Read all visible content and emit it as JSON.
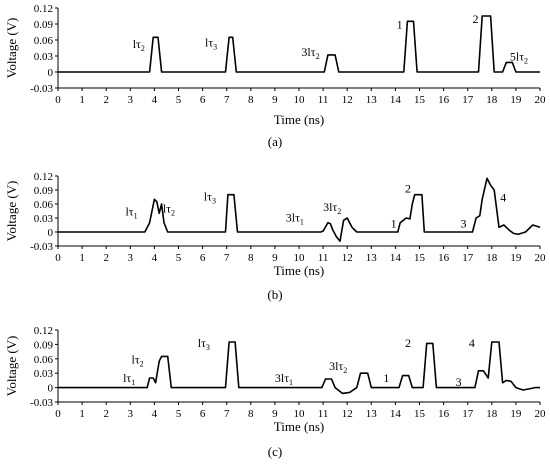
{
  "chart_data": [
    {
      "type": "line",
      "caption": "(a)",
      "xlabel": "Time (ns)",
      "ylabel": "Voltage (V)",
      "xlim": [
        0,
        20
      ],
      "ylim": [
        -0.03,
        0.12
      ],
      "xticks": [
        "0",
        "1",
        "2",
        "3",
        "4",
        "5",
        "6",
        "7",
        "8",
        "9",
        "10",
        "11",
        "12",
        "13",
        "14",
        "15",
        "16",
        "17",
        "18",
        "19",
        "20"
      ],
      "yticks": [
        "-0.03",
        "0",
        "0.03",
        "0.06",
        "0.09",
        "0.12"
      ],
      "grid": false,
      "series": [
        {
          "x": [
            0,
            3.8,
            3.95,
            4.15,
            4.3,
            6.95,
            7.1,
            7.25,
            7.4,
            11.05,
            11.2,
            11.5,
            11.65,
            14.35,
            14.5,
            14.75,
            14.9,
            17.45,
            17.6,
            17.95,
            18.1,
            18.45,
            18.6,
            18.85,
            19.0,
            20
          ],
          "y": [
            0,
            0,
            0.065,
            0.065,
            0,
            0,
            0.065,
            0.065,
            0,
            0,
            0.032,
            0.032,
            0,
            0,
            0.095,
            0.095,
            0,
            0,
            0.105,
            0.105,
            0,
            0,
            0.018,
            0.018,
            0,
            0
          ]
        }
      ],
      "annotations": [
        {
          "pre": "lτ",
          "sub": "2",
          "x": 3.1,
          "y": 0.045
        },
        {
          "pre": "lτ",
          "sub": "3",
          "x": 6.1,
          "y": 0.048
        },
        {
          "pre": "3lτ",
          "sub": "2",
          "x": 10.1,
          "y": 0.03
        },
        {
          "pre": "1",
          "sub": "",
          "x": 14.05,
          "y": 0.082
        },
        {
          "pre": "2",
          "sub": "",
          "x": 17.2,
          "y": 0.092
        },
        {
          "pre": "5lτ",
          "sub": "2",
          "x": 18.75,
          "y": 0.022
        }
      ]
    },
    {
      "type": "line",
      "caption": "(b)",
      "xlabel": "Time (ns)",
      "ylabel": "Voltage (V)",
      "xlim": [
        0,
        20
      ],
      "ylim": [
        -0.03,
        0.12
      ],
      "xticks": [
        "0",
        "1",
        "2",
        "3",
        "4",
        "5",
        "6",
        "7",
        "8",
        "9",
        "10",
        "11",
        "12",
        "13",
        "14",
        "15",
        "16",
        "17",
        "18",
        "19",
        "20"
      ],
      "yticks": [
        "-0.03",
        "0",
        "0.03",
        "0.06",
        "0.09",
        "0.12"
      ],
      "grid": false,
      "series": [
        {
          "x": [
            0,
            3.6,
            3.8,
            3.9,
            4.0,
            4.1,
            4.2,
            4.3,
            4.4,
            4.55,
            6.95,
            7.05,
            7.3,
            7.45,
            10.9,
            11.0,
            11.2,
            11.3,
            11.4,
            11.55,
            11.7,
            11.85,
            12.0,
            12.2,
            12.4,
            14.1,
            14.2,
            14.45,
            14.6,
            14.7,
            14.8,
            15.1,
            15.2,
            17.2,
            17.35,
            17.5,
            17.6,
            17.8,
            17.95,
            18.1,
            18.2,
            18.3,
            18.5,
            18.7,
            18.9,
            19.1,
            19.4,
            19.7,
            20
          ],
          "y": [
            0,
            0,
            0.02,
            0.045,
            0.07,
            0.065,
            0.04,
            0.06,
            0.02,
            0,
            0,
            0.08,
            0.08,
            0,
            0,
            0.002,
            0.02,
            0.018,
            0.005,
            -0.01,
            -0.02,
            0.025,
            0.03,
            0.01,
            0,
            0,
            0.02,
            0.03,
            0.028,
            0.06,
            0.08,
            0.08,
            0,
            0,
            0.03,
            0.035,
            0.07,
            0.115,
            0.1,
            0.09,
            0.05,
            0.01,
            0.015,
            0.005,
            -0.003,
            -0.005,
            0,
            0.015,
            0.01
          ]
        }
      ],
      "annotations": [
        {
          "pre": "lτ",
          "sub": "1",
          "x": 2.8,
          "y": 0.035
        },
        {
          "pre": "lτ",
          "sub": "2",
          "x": 4.35,
          "y": 0.042
        },
        {
          "pre": "lτ",
          "sub": "3",
          "x": 6.05,
          "y": 0.067
        },
        {
          "pre": "3lτ",
          "sub": "1",
          "x": 9.45,
          "y": 0.023
        },
        {
          "pre": "3lτ",
          "sub": "2",
          "x": 11.0,
          "y": 0.045
        },
        {
          "pre": "1",
          "sub": "",
          "x": 13.8,
          "y": 0.01
        },
        {
          "pre": "2",
          "sub": "",
          "x": 14.4,
          "y": 0.085
        },
        {
          "pre": "3",
          "sub": "",
          "x": 16.7,
          "y": 0.01
        },
        {
          "pre": "4",
          "sub": "",
          "x": 18.35,
          "y": 0.065
        }
      ]
    },
    {
      "type": "line",
      "caption": "(c)",
      "xlabel": "Time (ns)",
      "ylabel": "Voltage (V)",
      "xlim": [
        0,
        20
      ],
      "ylim": [
        -0.03,
        0.12
      ],
      "xticks": [
        "0",
        "1",
        "2",
        "3",
        "4",
        "5",
        "6",
        "7",
        "8",
        "9",
        "10",
        "11",
        "12",
        "13",
        "14",
        "15",
        "16",
        "17",
        "18",
        "19",
        "20"
      ],
      "yticks": [
        "-0.03",
        "0",
        "0.03",
        "0.06",
        "0.09",
        "0.12"
      ],
      "grid": false,
      "series": [
        {
          "x": [
            0,
            3.7,
            3.8,
            3.95,
            4.05,
            4.2,
            4.3,
            4.55,
            4.7,
            6.95,
            7.1,
            7.35,
            7.5,
            10.95,
            11.1,
            11.35,
            11.5,
            11.8,
            12.1,
            12.4,
            12.55,
            12.65,
            12.85,
            13.0,
            14.15,
            14.3,
            14.55,
            14.7,
            15.15,
            15.3,
            15.55,
            15.7,
            17.3,
            17.45,
            17.65,
            17.85,
            18.0,
            18.3,
            18.45,
            18.6,
            18.8,
            19.0,
            19.3,
            19.6,
            19.8,
            20
          ],
          "y": [
            0,
            0,
            0.02,
            0.02,
            0.01,
            0.055,
            0.065,
            0.065,
            0,
            0,
            0.095,
            0.095,
            0,
            0,
            0.018,
            0.018,
            0,
            -0.012,
            -0.01,
            0,
            0.03,
            0.03,
            0.03,
            0,
            0,
            0.025,
            0.025,
            0,
            0,
            0.092,
            0.092,
            0,
            0,
            0.035,
            0.035,
            0.02,
            0.095,
            0.095,
            0.01,
            0.015,
            0.013,
            0,
            -0.005,
            -0.002,
            0,
            0
          ]
        }
      ],
      "annotations": [
        {
          "pre": "lτ",
          "sub": "1",
          "x": 2.7,
          "y": 0.012
        },
        {
          "pre": "lτ",
          "sub": "2",
          "x": 3.05,
          "y": 0.05
        },
        {
          "pre": "lτ",
          "sub": "3",
          "x": 5.8,
          "y": 0.085
        },
        {
          "pre": "3lτ",
          "sub": "1",
          "x": 9.0,
          "y": 0.012
        },
        {
          "pre": "3lτ",
          "sub": "2",
          "x": 11.25,
          "y": 0.037
        },
        {
          "pre": "1",
          "sub": "",
          "x": 13.5,
          "y": 0.012
        },
        {
          "pre": "2",
          "sub": "",
          "x": 14.4,
          "y": 0.085
        },
        {
          "pre": "3",
          "sub": "",
          "x": 16.5,
          "y": 0.003
        },
        {
          "pre": "4",
          "sub": "",
          "x": 17.05,
          "y": 0.085
        }
      ]
    }
  ]
}
